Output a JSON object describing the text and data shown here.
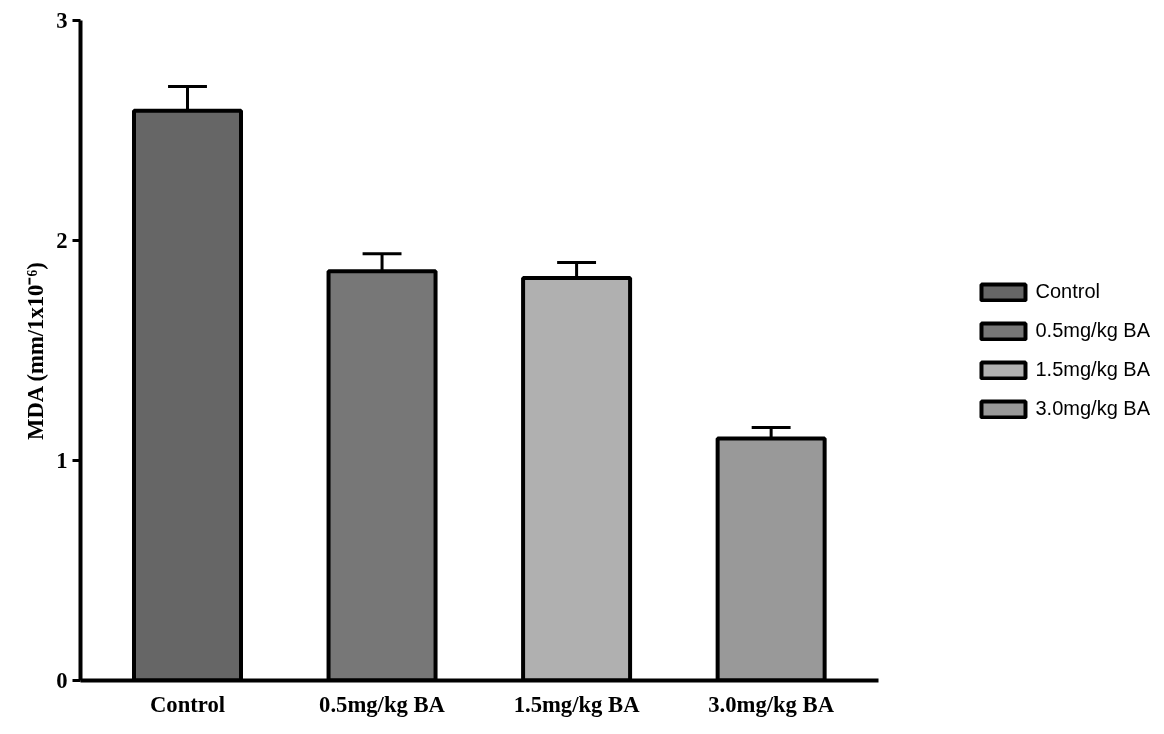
{
  "chart_data": {
    "type": "bar",
    "ylabel": "MDA (mm/1x10⁻⁶)",
    "categories": [
      "Control",
      "0.5mg/kg BA",
      "1.5mg/kg BA",
      "3.0mg/kg BA"
    ],
    "series": [
      {
        "name": "Control",
        "color": "#666666",
        "values": [
          2.59,
          null,
          null,
          null
        ],
        "errors": [
          0.11,
          null,
          null,
          null
        ]
      },
      {
        "name": "0.5mg/kg BA",
        "color": "#777777",
        "values": [
          null,
          1.86,
          null,
          null
        ],
        "errors": [
          null,
          0.08,
          null,
          null
        ]
      },
      {
        "name": "1.5mg/kg BA",
        "color": "#b0b0b0",
        "values": [
          null,
          null,
          1.83,
          null
        ],
        "errors": [
          null,
          null,
          0.07,
          null
        ]
      },
      {
        "name": "3.0mg/kg BA",
        "color": "#999999",
        "values": [
          null,
          null,
          null,
          1.1
        ],
        "errors": [
          null,
          null,
          null,
          0.05
        ]
      }
    ],
    "ylim": [
      0,
      3
    ],
    "yticks": [
      0,
      1,
      2,
      3
    ],
    "grid": false,
    "legend": "right"
  }
}
